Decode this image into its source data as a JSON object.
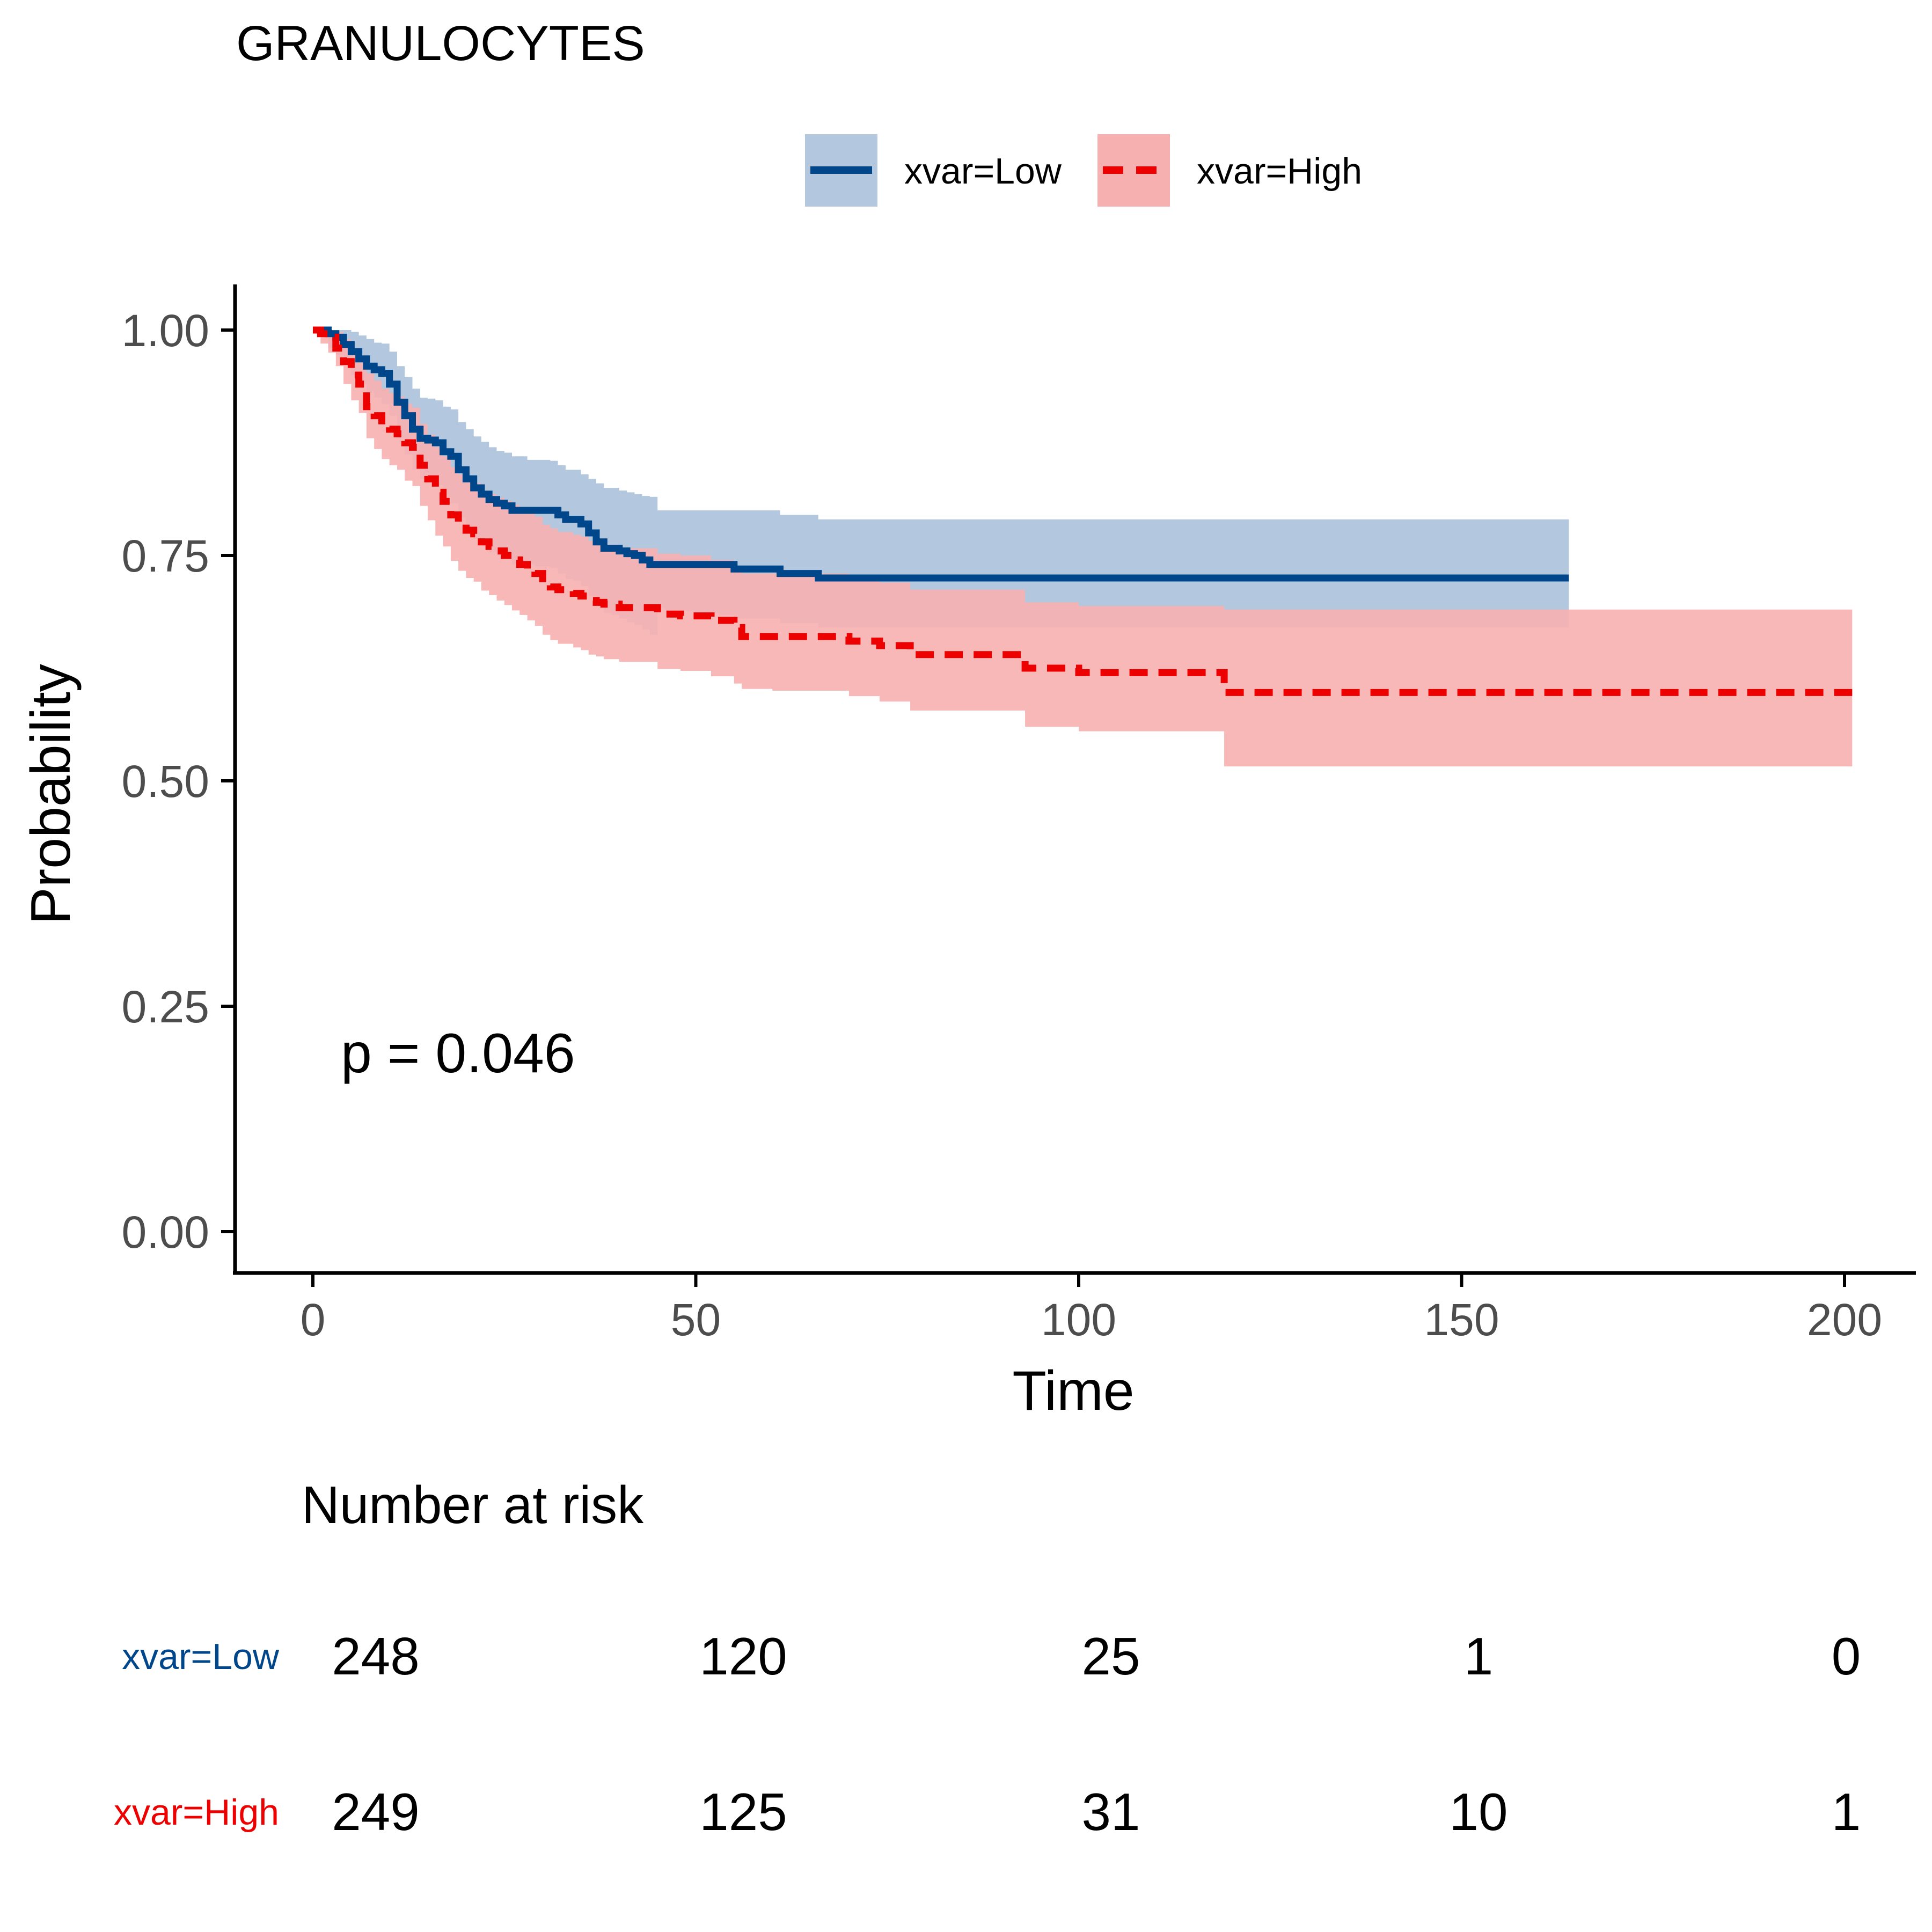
{
  "chart_data": {
    "type": "line",
    "title": "GRANULOCYTES",
    "xlabel": "Time",
    "ylabel": "Probability",
    "xlim": [
      -10,
      210
    ],
    "ylim": [
      -0.05,
      1.05
    ],
    "x_ticks": [
      0,
      50,
      100,
      150,
      200
    ],
    "x_tick_labels": [
      "0",
      "50",
      "100",
      "150",
      "200"
    ],
    "y_ticks": [
      0,
      0.25,
      0.5,
      0.75,
      1
    ],
    "y_tick_labels": [
      "0.00",
      "0.25",
      "0.50",
      "0.75",
      "1.00"
    ],
    "grid": false,
    "legend_position": "top",
    "annotation": "p = 0.046",
    "series": [
      {
        "name": "xvar=Low",
        "color": "#00468b",
        "band_color": "#b3c8de",
        "line_style": "solid",
        "time": [
          0,
          2,
          3,
          4,
          5,
          6,
          7,
          8,
          9,
          10,
          11,
          12,
          13,
          14,
          15,
          16,
          17,
          18,
          19,
          20,
          21,
          22,
          23,
          24,
          25,
          26,
          28,
          29,
          30,
          31,
          32,
          33,
          34,
          35,
          36,
          37,
          38,
          39,
          40,
          41,
          42,
          43,
          44,
          45,
          46,
          50,
          53,
          55,
          60,
          61,
          65,
          66,
          70,
          164
        ],
        "surv": [
          1.0,
          0.996,
          0.992,
          0.984,
          0.976,
          0.968,
          0.96,
          0.956,
          0.952,
          0.94,
          0.92,
          0.905,
          0.89,
          0.88,
          0.878,
          0.875,
          0.865,
          0.86,
          0.845,
          0.835,
          0.825,
          0.818,
          0.812,
          0.808,
          0.805,
          0.8,
          0.8,
          0.8,
          0.8,
          0.8,
          0.795,
          0.79,
          0.79,
          0.785,
          0.775,
          0.765,
          0.758,
          0.758,
          0.755,
          0.752,
          0.75,
          0.745,
          0.74,
          0.74,
          0.74,
          0.74,
          0.74,
          0.735,
          0.735,
          0.73,
          0.73,
          0.725,
          0.725,
          0.725
        ],
        "lower": [
          1.0,
          0.98,
          0.972,
          0.962,
          0.95,
          0.94,
          0.93,
          0.925,
          0.918,
          0.905,
          0.88,
          0.862,
          0.845,
          0.835,
          0.832,
          0.828,
          0.815,
          0.808,
          0.792,
          0.78,
          0.768,
          0.76,
          0.754,
          0.75,
          0.746,
          0.74,
          0.74,
          0.738,
          0.738,
          0.736,
          0.73,
          0.724,
          0.722,
          0.716,
          0.705,
          0.694,
          0.686,
          0.684,
          0.68,
          0.676,
          0.673,
          0.668,
          0.662,
          0.692,
          0.688,
          0.686,
          0.684,
          0.68,
          0.68,
          0.675,
          0.675,
          0.67,
          0.67,
          0.67
        ],
        "upper": [
          1.0,
          1.0,
          1.0,
          1.0,
          0.998,
          0.994,
          0.99,
          0.986,
          0.985,
          0.976,
          0.96,
          0.948,
          0.935,
          0.925,
          0.924,
          0.922,
          0.915,
          0.912,
          0.898,
          0.89,
          0.882,
          0.876,
          0.87,
          0.866,
          0.864,
          0.86,
          0.856,
          0.856,
          0.856,
          0.855,
          0.85,
          0.845,
          0.845,
          0.84,
          0.835,
          0.83,
          0.825,
          0.825,
          0.822,
          0.82,
          0.818,
          0.816,
          0.815,
          0.8,
          0.8,
          0.8,
          0.8,
          0.8,
          0.8,
          0.795,
          0.795,
          0.79,
          0.79,
          0.79
        ]
      },
      {
        "name": "xvar=High",
        "color": "#ed0000",
        "band_color": "#f7b0b0",
        "line_style": "dashed",
        "time": [
          0,
          1,
          2,
          3,
          4,
          5,
          6,
          7,
          8,
          9,
          10,
          11,
          12,
          13,
          14,
          15,
          16,
          17,
          18,
          19,
          20,
          21,
          22,
          23,
          24,
          25,
          26,
          27,
          28,
          29,
          30,
          31,
          32,
          34,
          35,
          36,
          37,
          38,
          40,
          45,
          48,
          52,
          55,
          56,
          60,
          70,
          74,
          78,
          93,
          100,
          119,
          120,
          201
        ],
        "surv": [
          1.0,
          0.996,
          0.992,
          0.98,
          0.965,
          0.95,
          0.94,
          0.915,
          0.905,
          0.895,
          0.89,
          0.885,
          0.875,
          0.87,
          0.85,
          0.835,
          0.82,
          0.81,
          0.795,
          0.785,
          0.778,
          0.774,
          0.765,
          0.76,
          0.755,
          0.75,
          0.745,
          0.74,
          0.735,
          0.73,
          0.72,
          0.715,
          0.712,
          0.708,
          0.705,
          0.7,
          0.698,
          0.696,
          0.692,
          0.685,
          0.683,
          0.678,
          0.67,
          0.66,
          0.66,
          0.655,
          0.65,
          0.64,
          0.625,
          0.62,
          0.598,
          0.598,
          0.598
        ],
        "lower": [
          1.0,
          0.985,
          0.975,
          0.96,
          0.94,
          0.922,
          0.908,
          0.88,
          0.868,
          0.857,
          0.85,
          0.845,
          0.833,
          0.827,
          0.805,
          0.789,
          0.772,
          0.76,
          0.744,
          0.733,
          0.725,
          0.721,
          0.711,
          0.706,
          0.7,
          0.695,
          0.689,
          0.684,
          0.678,
          0.672,
          0.662,
          0.656,
          0.652,
          0.648,
          0.645,
          0.64,
          0.638,
          0.635,
          0.632,
          0.624,
          0.622,
          0.616,
          0.608,
          0.602,
          0.6,
          0.594,
          0.588,
          0.578,
          0.56,
          0.555,
          0.516,
          0.516,
          0.516
        ],
        "upper": [
          1.0,
          1.0,
          1.0,
          0.998,
          0.99,
          0.98,
          0.972,
          0.952,
          0.944,
          0.935,
          0.93,
          0.926,
          0.918,
          0.914,
          0.896,
          0.884,
          0.87,
          0.86,
          0.848,
          0.84,
          0.834,
          0.83,
          0.822,
          0.818,
          0.814,
          0.81,
          0.806,
          0.802,
          0.797,
          0.793,
          0.784,
          0.78,
          0.776,
          0.773,
          0.771,
          0.766,
          0.764,
          0.762,
          0.758,
          0.752,
          0.75,
          0.745,
          0.738,
          0.73,
          0.73,
          0.725,
          0.72,
          0.712,
          0.698,
          0.694,
          0.69,
          0.69,
          0.69
        ]
      }
    ],
    "risk_table": {
      "title": "Number at risk",
      "times": [
        0,
        50,
        100,
        150,
        200
      ],
      "rows": [
        {
          "label": "xvar=Low",
          "color": "#00468b",
          "values": [
            "248",
            "120",
            "25",
            "1",
            "0"
          ]
        },
        {
          "label": "xvar=High",
          "color": "#ed0000",
          "values": [
            "249",
            "125",
            "31",
            "10",
            "1"
          ]
        }
      ]
    }
  }
}
